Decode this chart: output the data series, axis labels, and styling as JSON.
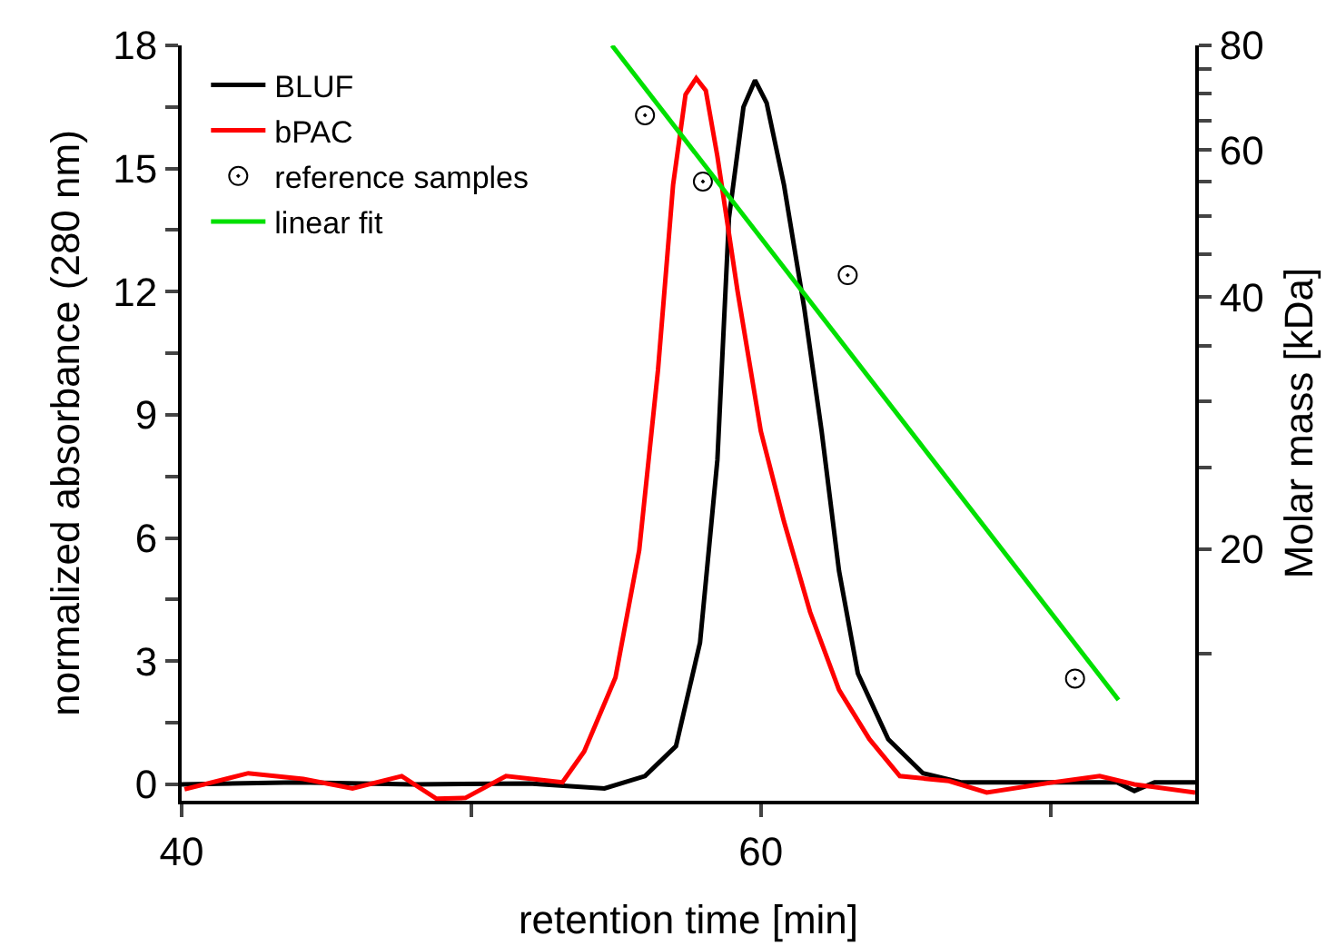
{
  "chart_data": {
    "type": "line",
    "xlabel": "retention time [min]",
    "ylabel": "normalized absorbance (280 nm)",
    "y2label": "Molar mass [kDa]",
    "xlim": [
      40,
      75
    ],
    "xticks": [
      40,
      {
        "value": 50,
        "label": null
      },
      60,
      {
        "value": 70,
        "label": null
      }
    ],
    "ylim": [
      -0.4,
      18
    ],
    "yticks": [
      0,
      {
        "value": 1.5,
        "label": null
      },
      3,
      {
        "value": 4.5,
        "label": null
      },
      6,
      {
        "value": 7.5,
        "label": null
      },
      9,
      {
        "value": 10.5,
        "label": null
      },
      12,
      {
        "value": 13.5,
        "label": null
      },
      15,
      {
        "value": 16.5,
        "label": null
      },
      18
    ],
    "y2lim": [
      10,
      80
    ],
    "log": "y2",
    "y2ticks": [
      {
        "value": 15,
        "label": null
      },
      20,
      {
        "value": 25,
        "label": null
      },
      {
        "value": 30,
        "label": null
      },
      {
        "value": 35,
        "label": null
      },
      40,
      {
        "value": 45,
        "label": null
      },
      {
        "value": 50,
        "label": null
      },
      {
        "value": 55,
        "label": null
      },
      60,
      {
        "value": 65,
        "label": null
      },
      {
        "value": 70,
        "label": null
      },
      {
        "value": 75,
        "label": null
      },
      80
    ],
    "grid": false,
    "legend": "top left",
    "line_style": "solid",
    "series": [
      {
        "name": "BLUF",
        "color": "#000000",
        "marker": "none",
        "x": [
          40,
          44,
          48,
          52,
          54.6,
          56.0,
          57.07,
          57.9,
          58.5,
          58.9,
          59.4,
          59.8,
          60.2,
          60.8,
          61.5,
          62.1,
          62.7,
          63.35,
          64.4,
          65.6,
          66.9,
          70,
          72.3,
          72.9,
          73.6,
          75
        ],
        "values": [
          0,
          0.05,
          0,
          0.02,
          -0.1,
          0.2,
          0.93,
          3.45,
          7.9,
          13.8,
          16.5,
          17.15,
          16.6,
          14.6,
          11.6,
          8.6,
          5.2,
          2.7,
          1.1,
          0.27,
          0.05,
          0.05,
          0.05,
          -0.16,
          0.05,
          0.05
        ]
      },
      {
        "name": "bPAC",
        "color": "#ff0000",
        "marker": "none",
        "x": [
          40.1,
          42.3,
          44.2,
          45.9,
          47.6,
          48.8,
          49.8,
          51.2,
          53.15,
          53.9,
          54.98,
          55.8,
          56.45,
          56.97,
          57.4,
          57.77,
          58.1,
          58.5,
          59.2,
          60.0,
          60.8,
          61.7,
          62.7,
          63.75,
          64.8,
          66.5,
          67.8,
          70,
          71.7,
          72.9,
          75
        ],
        "values": [
          -0.12,
          0.27,
          0.13,
          -0.1,
          0.2,
          -0.35,
          -0.33,
          0.2,
          0.05,
          0.8,
          2.6,
          5.7,
          10.1,
          14.6,
          16.8,
          17.2,
          16.9,
          15.3,
          12.0,
          8.6,
          6.4,
          4.2,
          2.3,
          1.1,
          0.2,
          0.08,
          -0.2,
          0.04,
          0.2,
          0.0,
          -0.2
        ]
      },
      {
        "name": "reference samples",
        "type": "scatter",
        "axis": "y2",
        "color": "#000000",
        "marker": "circle",
        "x": [
          56.0,
          58.0,
          63.0,
          70.85
        ],
        "values": [
          66,
          55,
          42.5,
          14
        ]
      },
      {
        "name": "linear fit",
        "type": "line",
        "axis": "y2",
        "color": "#00e000",
        "marker": "none",
        "x": [
          54.86,
          72.35
        ],
        "values": [
          80,
          13.2
        ]
      }
    ]
  }
}
